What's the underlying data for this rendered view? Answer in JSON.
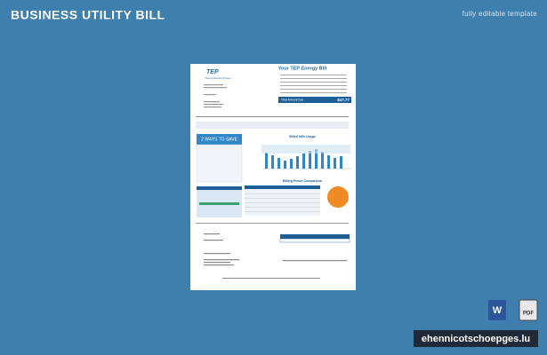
{
  "header": {
    "title": "BUSINESS UTILITY BILL",
    "subtitle": "fully editable template"
  },
  "bill": {
    "logo": "TEP",
    "company": "Tucson Electric Power",
    "heading": "Your TEP Energy Bill",
    "amount_due_label": "Total Amount Due",
    "amount_due": "$47.77",
    "save_title": "2 WAYS TO SAVE",
    "chart_title": "Billed kWh Usage",
    "comparison_title": "Billing Period Comparison"
  },
  "footer": {
    "website": "ehennicotschoepges.lu",
    "word_icon": "W",
    "pdf_icon": "PDF"
  }
}
